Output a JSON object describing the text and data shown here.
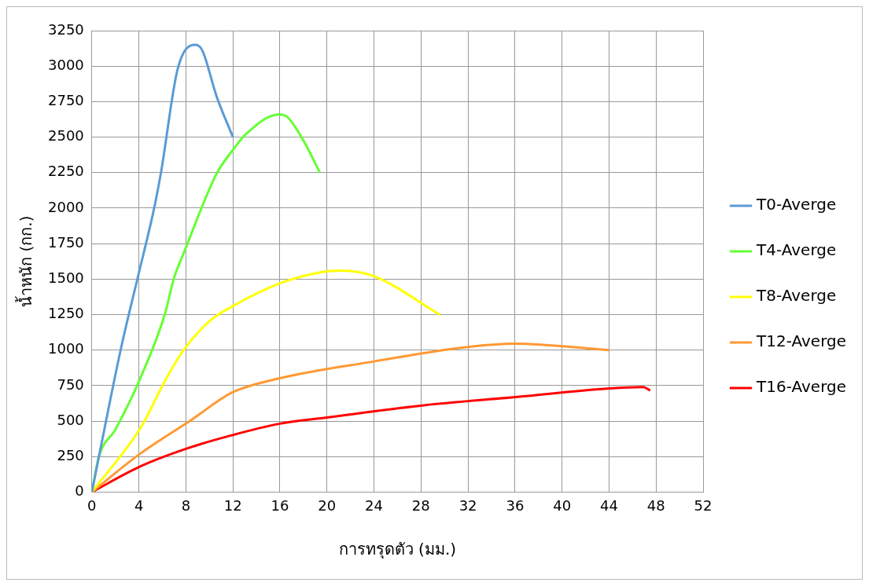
{
  "chart_data": {
    "type": "line",
    "xlabel": "การทรุดตัว (มม.)",
    "ylabel": "น้ำหนัก (กก.)",
    "xlim": [
      0,
      52
    ],
    "xticks": [
      0,
      4,
      8,
      12,
      16,
      20,
      24,
      28,
      32,
      36,
      40,
      44,
      48,
      52
    ],
    "ylim": [
      0,
      3250
    ],
    "yticks": [
      0,
      250,
      500,
      750,
      1000,
      1250,
      1500,
      1750,
      2000,
      2250,
      2500,
      2750,
      3000,
      3250
    ],
    "grid": true,
    "legend": "right",
    "marker": "none",
    "line_style": "solid",
    "series": [
      {
        "name": "T0-Averge",
        "color": "#5b9bd5",
        "x": [
          0,
          0.6,
          2.5,
          3.9,
          5.3,
          5.9,
          7.3,
          8.8,
          9.4,
          10.6,
          12
        ],
        "values": [
          0,
          250,
          1020,
          1510,
          2000,
          2260,
          2980,
          3150,
          3110,
          2790,
          2500
        ]
      },
      {
        "name": "T4-Averge",
        "color": "#66ff33",
        "x": [
          0,
          0.6,
          2,
          3.9,
          6.2,
          7,
          7.8,
          10.6,
          12,
          13.1,
          15.9,
          16.5,
          17.9,
          19.4
        ],
        "values": [
          0,
          250,
          440,
          760,
          1250,
          1510,
          1680,
          2240,
          2410,
          2520,
          2660,
          2650,
          2490,
          2250
        ]
      },
      {
        "name": "T8-Averge",
        "color": "#ffff00",
        "x": [
          0,
          4.2,
          6.2,
          7.8,
          10.1,
          12,
          16,
          19.6,
          21.2,
          24,
          29.6
        ],
        "values": [
          0,
          460,
          780,
          1000,
          1210,
          1310,
          1470,
          1550,
          1560,
          1520,
          1250
        ]
      },
      {
        "name": "T12-Averge",
        "color": "#ff9933",
        "x": [
          0,
          4.1,
          8.5,
          11.9,
          15.9,
          24,
          31.8,
          35.9,
          44
        ],
        "values": [
          0,
          270,
          510,
          700,
          800,
          920,
          1020,
          1045,
          1000
        ]
      },
      {
        "name": "T16-Averge",
        "color": "#ff0000",
        "x": [
          0,
          4.1,
          8.2,
          11.9,
          15.9,
          20,
          28.1,
          36.2,
          44,
          46.9,
          47.5
        ],
        "values": [
          0,
          180,
          310,
          400,
          480,
          525,
          610,
          670,
          730,
          740,
          715
        ]
      }
    ]
  }
}
